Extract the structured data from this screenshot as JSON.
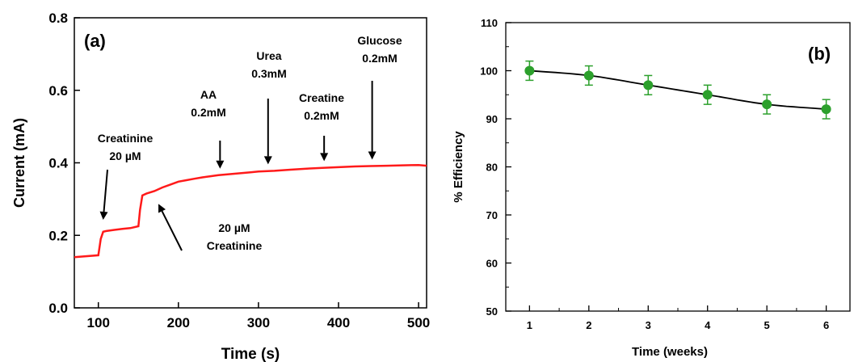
{
  "chart_data": [
    {
      "panel_label": "(a)",
      "type": "line",
      "xlabel": "Time (s)",
      "ylabel": "Current (mA)",
      "xlim": [
        70,
        510
      ],
      "ylim": [
        0.0,
        0.8
      ],
      "xticks": [
        "100",
        "200",
        "300",
        "400",
        "500"
      ],
      "yticks": [
        "0.0",
        "0.2",
        "0.4",
        "0.6",
        "0.8"
      ],
      "series_color": "#ff1a1a",
      "x": [
        70,
        100,
        103,
        106,
        110,
        120,
        130,
        140,
        150,
        152,
        155,
        160,
        170,
        180,
        190,
        200,
        210,
        220,
        230,
        240,
        250,
        260,
        270,
        280,
        290,
        300,
        320,
        340,
        360,
        380,
        400,
        420,
        440,
        460,
        480,
        500,
        510
      ],
      "y": [
        0.14,
        0.145,
        0.19,
        0.21,
        0.212,
        0.215,
        0.218,
        0.22,
        0.225,
        0.27,
        0.31,
        0.315,
        0.322,
        0.332,
        0.34,
        0.348,
        0.352,
        0.356,
        0.36,
        0.363,
        0.366,
        0.368,
        0.37,
        0.372,
        0.374,
        0.376,
        0.378,
        0.381,
        0.384,
        0.386,
        0.388,
        0.39,
        0.391,
        0.392,
        0.393,
        0.394,
        0.392
      ],
      "annotations": [
        {
          "lines": [
            "Creatinine",
            "20 µM"
          ],
          "arrow_to_x": 106,
          "arrow_to_y": 0.225
        },
        {
          "lines": [
            "20 µM",
            "Creatinine"
          ],
          "arrow_to_x": 175,
          "arrow_to_y": 0.3
        },
        {
          "lines": [
            "AA",
            "0.2mM"
          ],
          "arrow_to_x": 252,
          "arrow_to_y": 0.366
        },
        {
          "lines": [
            "Urea",
            "0.3mM"
          ],
          "arrow_to_x": 312,
          "arrow_to_y": 0.378
        },
        {
          "lines": [
            "Creatine",
            "0.2mM"
          ],
          "arrow_to_x": 382,
          "arrow_to_y": 0.387
        },
        {
          "lines": [
            "Glucose",
            "0.2mM"
          ],
          "arrow_to_x": 442,
          "arrow_to_y": 0.391
        }
      ]
    },
    {
      "panel_label": "(b)",
      "type": "line",
      "xlabel": "Time (weeks)",
      "ylabel": "% Efficiency",
      "xlim": [
        0.6,
        6.4
      ],
      "ylim": [
        50,
        110
      ],
      "xticks": [
        "1",
        "2",
        "3",
        "4",
        "5",
        "6"
      ],
      "yticks": [
        "50",
        "60",
        "70",
        "80",
        "90",
        "100",
        "110"
      ],
      "marker_color": "#2ca02c",
      "x": [
        1,
        2,
        3,
        4,
        5,
        6
      ],
      "y": [
        100,
        99,
        97,
        95,
        93,
        92
      ],
      "yerr": [
        2,
        2,
        2,
        2,
        2,
        2
      ]
    }
  ]
}
